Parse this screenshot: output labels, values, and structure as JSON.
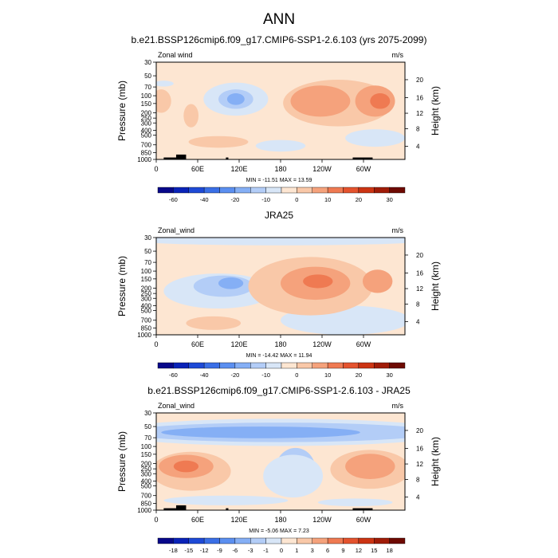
{
  "figure": {
    "title": "ANN"
  },
  "chart_data": [
    {
      "type": "contour",
      "title": "b.e21.BSSP126cmip6.f09_g17.CMIP6-SSP1-2.6.103 (yrs 2075-2099)",
      "left_label": "Zonal wind",
      "right_label": "m/s",
      "ylabel": "Pressure (mb)",
      "ylabel_right": "Height (km)",
      "x_ticks": [
        "0",
        "60E",
        "120E",
        "180",
        "120W",
        "60W"
      ],
      "y_ticks": [
        "30",
        "50",
        "70",
        "100",
        "150",
        "200",
        "250",
        "300",
        "400",
        "500",
        "700",
        "850",
        "1000"
      ],
      "height_ticks": [
        "4",
        "8",
        "12",
        "16",
        "20"
      ],
      "stats": "MIN = -11.51  MAX = 13.59",
      "colorbar_labels": [
        "-60",
        "-40",
        "-20",
        "-10",
        "0",
        "10",
        "20",
        "30"
      ],
      "colorbar_colors": [
        "#08088a",
        "#0a23b8",
        "#1e4ad6",
        "#3a6fe6",
        "#5b8ff0",
        "#85aff5",
        "#b3cdf7",
        "#d8e6f7",
        "#fde6d2",
        "#f9c8a8",
        "#f5a27c",
        "#ef7a52",
        "#e4532e",
        "#cc3413",
        "#a01c08",
        "#6e0a02"
      ],
      "min": -11.51,
      "max": 13.59
    },
    {
      "type": "contour",
      "title": "JRA25",
      "left_label": "Zonal_wind",
      "right_label": "m/s",
      "ylabel": "Pressure (mb)",
      "ylabel_right": "Height (km)",
      "x_ticks": [
        "0",
        "60E",
        "120E",
        "180",
        "120W",
        "60W"
      ],
      "y_ticks": [
        "30",
        "50",
        "70",
        "100",
        "150",
        "200",
        "250",
        "300",
        "400",
        "500",
        "700",
        "850",
        "1000"
      ],
      "height_ticks": [
        "4",
        "8",
        "12",
        "16",
        "20"
      ],
      "stats": "MIN = -14.42  MAX = 11.94",
      "colorbar_labels": [
        "-60",
        "-40",
        "-20",
        "-10",
        "0",
        "10",
        "20",
        "30"
      ],
      "colorbar_colors": [
        "#08088a",
        "#0a23b8",
        "#1e4ad6",
        "#3a6fe6",
        "#5b8ff0",
        "#85aff5",
        "#b3cdf7",
        "#d8e6f7",
        "#fde6d2",
        "#f9c8a8",
        "#f5a27c",
        "#ef7a52",
        "#e4532e",
        "#cc3413",
        "#a01c08",
        "#6e0a02"
      ],
      "min": -14.42,
      "max": 11.94
    },
    {
      "type": "contour",
      "title": "b.e21.BSSP126cmip6.f09_g17.CMIP6-SSP1-2.6.103 - JRA25",
      "left_label": "Zonal_wind",
      "right_label": "m/s",
      "ylabel": "Pressure (mb)",
      "ylabel_right": "Height (km)",
      "x_ticks": [
        "0",
        "60E",
        "120E",
        "180",
        "120W",
        "60W"
      ],
      "y_ticks": [
        "30",
        "50",
        "70",
        "100",
        "150",
        "200",
        "250",
        "300",
        "400",
        "500",
        "700",
        "850",
        "1000"
      ],
      "height_ticks": [
        "4",
        "8",
        "12",
        "16",
        "20"
      ],
      "stats": "MIN = -5.06  MAX =  7.23",
      "colorbar_labels": [
        "-18",
        "-15",
        "-12",
        "-9",
        "-6",
        "-3",
        "-1",
        "0",
        "1",
        "3",
        "6",
        "9",
        "12",
        "15",
        "18"
      ],
      "colorbar_colors": [
        "#08088a",
        "#0a23b8",
        "#1e4ad6",
        "#3a6fe6",
        "#5b8ff0",
        "#85aff5",
        "#b3cdf7",
        "#d8e6f7",
        "#fde6d2",
        "#f9c8a8",
        "#f5a27c",
        "#ef7a52",
        "#e4532e",
        "#cc3413",
        "#a01c08",
        "#6e0a02"
      ],
      "min": -5.06,
      "max": 7.23
    }
  ]
}
